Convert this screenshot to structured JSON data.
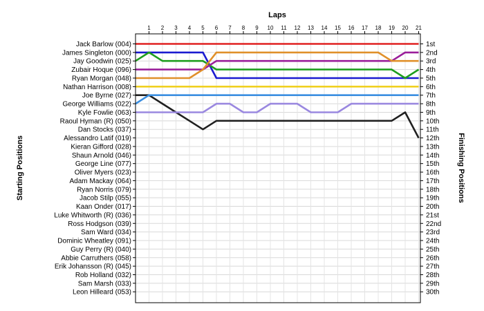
{
  "chart_data": {
    "type": "line",
    "title": "Laps",
    "ylabel_left": "Starting Positions",
    "ylabel_right": "Finishing Positions",
    "laps": [
      "1",
      "2",
      "3",
      "4",
      "5",
      "6",
      "7",
      "8",
      "9",
      "10",
      "11",
      "12",
      "13",
      "14",
      "15",
      "16",
      "17",
      "18",
      "19",
      "20",
      "21"
    ],
    "positions": [
      "1st",
      "2nd",
      "3rd",
      "4th",
      "5th",
      "6th",
      "7th",
      "8th",
      "9th",
      "10th",
      "11th",
      "12th",
      "13th",
      "14th",
      "15th",
      "16th",
      "17th",
      "18th",
      "19th",
      "20th",
      "21st",
      "22nd",
      "23rd",
      "24th",
      "25th",
      "26th",
      "27th",
      "28th",
      "29th",
      "30th"
    ],
    "start_labels": [
      "Jack Barlow (004)",
      "James Singleton (000)",
      "Jay Goodwin (025)",
      "Zubair Hoque (096)",
      "Ryan Morgan (048)",
      "Nathan Harrison (008)",
      "Joe Byrne (027)",
      "George Williams (022)",
      "Kyle Fowlie (063)",
      "Raoul Hyman  (R) (050)",
      "Dan Stocks (037)",
      "Alessandro Latif (019)",
      "Kieran Gifford (028)",
      "Shaun Arnold (046)",
      "George Line (077)",
      "Oliver Myers (023)",
      "Adam Mackay (064)",
      "Ryan Norris (079)",
      "Jacob Stilp (055)",
      "Kaan Onder (017)",
      "Luke Whitworth (R) (036)",
      "Ross Hodgson (039)",
      "Sam Ward (034)",
      "Dominic Wheatley (091)",
      "Guy Perry (R) (040)",
      "Abbie Carruthers (058)",
      "Erik Johansson (R) (045)",
      "Rob Holland (032)",
      "Sam Marsh (033)",
      "Leon Hilleard (053)"
    ],
    "series": [
      {
        "name": "Jack Barlow (004)",
        "color": "#e02020",
        "positions": [
          1,
          1,
          1,
          1,
          1,
          1,
          1,
          1,
          1,
          1,
          1,
          1,
          1,
          1,
          1,
          1,
          1,
          1,
          1,
          1,
          1,
          1
        ]
      },
      {
        "name": "James Singleton (000)",
        "color": "#1a1ad0",
        "positions": [
          2,
          2,
          2,
          2,
          2,
          2,
          5,
          5,
          5,
          5,
          5,
          5,
          5,
          5,
          5,
          5,
          5,
          5,
          5,
          5,
          5,
          5
        ]
      },
      {
        "name": "Jay Goodwin (025)",
        "color": "#1e9e1e",
        "positions": [
          3,
          2,
          3,
          3,
          3,
          3,
          4,
          4,
          4,
          4,
          4,
          4,
          4,
          4,
          4,
          4,
          4,
          4,
          4,
          4,
          5,
          4
        ]
      },
      {
        "name": "Zubair Hoque (096)",
        "color": "#9a1e9a",
        "positions": [
          4,
          4,
          4,
          4,
          4,
          4,
          3,
          3,
          3,
          3,
          3,
          3,
          3,
          3,
          3,
          3,
          3,
          3,
          3,
          3,
          2,
          2
        ]
      },
      {
        "name": "Ryan Morgan (048)",
        "color": "#e0902a",
        "positions": [
          5,
          5,
          5,
          5,
          5,
          4,
          2,
          2,
          2,
          2,
          2,
          2,
          2,
          2,
          2,
          2,
          2,
          2,
          2,
          3,
          3,
          3
        ]
      },
      {
        "name": "Nathan Harrison (008)",
        "color": "#f0d020",
        "positions": [
          6,
          6,
          6,
          6,
          6,
          6,
          6,
          6,
          6,
          6,
          6,
          6,
          6,
          6,
          6,
          6,
          6,
          6,
          6,
          6,
          6,
          6
        ]
      },
      {
        "name": "Joe Byrne (027)",
        "color": "#202020",
        "positions": [
          7,
          7,
          8,
          9,
          10,
          11,
          10,
          10,
          10,
          10,
          10,
          10,
          10,
          10,
          10,
          10,
          10,
          10,
          10,
          10,
          9,
          12
        ]
      },
      {
        "name": "George Williams (022)",
        "color": "#3a8ee0",
        "positions": [
          8,
          7,
          7,
          7,
          7,
          7,
          7,
          7,
          7,
          7,
          7,
          7,
          7,
          7,
          7,
          7,
          7,
          7,
          7,
          7,
          7,
          7
        ]
      },
      {
        "name": "Kyle Fowlie (063)",
        "color": "#9a88e0",
        "positions": [
          9,
          9,
          9,
          9,
          9,
          9,
          8,
          8,
          9,
          9,
          8,
          8,
          8,
          9,
          9,
          9,
          8,
          8,
          8,
          8,
          8,
          8
        ]
      }
    ]
  }
}
